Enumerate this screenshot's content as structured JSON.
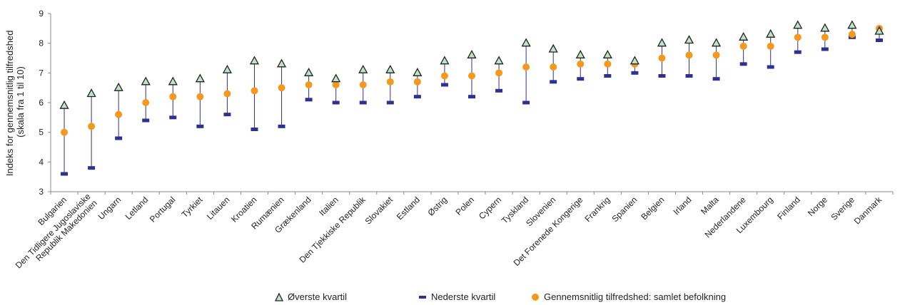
{
  "chart_data": {
    "type": "scatter",
    "ylabel": "Indeks for gennemsnitlig tilfredshed (skala fra 1 til 10)",
    "ylim": [
      3,
      9
    ],
    "yticks": [
      3,
      4,
      5,
      6,
      7,
      8,
      9
    ],
    "grid": false,
    "legend_placement": "bottom",
    "categories": [
      "Bulgarien",
      "Den Tidligere Jugoslaviske Republik Makedonien",
      "Ungarn",
      "Letland",
      "Portugal",
      "Tyrkiet",
      "Litauen",
      "Kroatien",
      "Rumænien",
      "Grækenland",
      "Italien",
      "Den Tjekkiske Republik",
      "Slovakiet",
      "Estland",
      "Østrig",
      "Polen",
      "Cypern",
      "Tyskland",
      "Slovenien",
      "Det Forenede Kongerige",
      "Frankrig",
      "Spanien",
      "Belgien",
      "Irland",
      "Malta",
      "Nederlandene",
      "Luxembourg",
      "Finland",
      "Norge",
      "Sverige",
      "Danmark"
    ],
    "category_labels": [
      [
        "Bulgarien"
      ],
      [
        "Den Tidligere Jugoslaviske",
        "Republik Makedonien"
      ],
      [
        "Ungarn"
      ],
      [
        "Letland"
      ],
      [
        "Portugal"
      ],
      [
        "Tyrkiet"
      ],
      [
        "Litauen"
      ],
      [
        "Kroatien"
      ],
      [
        "Rumænien"
      ],
      [
        "Grækenland"
      ],
      [
        "Italien"
      ],
      [
        "Den Tjekkiske Republik"
      ],
      [
        "Slovakiet"
      ],
      [
        "Estland"
      ],
      [
        "Østrig"
      ],
      [
        "Polen"
      ],
      [
        "Cypern"
      ],
      [
        "Tyskland"
      ],
      [
        "Slovenien"
      ],
      [
        "Det Forenede Kongerige"
      ],
      [
        "Frankrig"
      ],
      [
        "Spanien"
      ],
      [
        "Belgien"
      ],
      [
        "Irland"
      ],
      [
        "Malta"
      ],
      [
        "Nederlandene"
      ],
      [
        "Luxembourg"
      ],
      [
        "Finland"
      ],
      [
        "Norge"
      ],
      [
        "Sverige"
      ],
      [
        "Danmark"
      ]
    ],
    "series": [
      {
        "name": "Øverste kvartil",
        "marker": "triangle",
        "color": "#2e7d5b",
        "values": [
          5.9,
          6.3,
          6.5,
          6.7,
          6.7,
          6.8,
          7.1,
          7.4,
          7.3,
          7.0,
          6.8,
          7.1,
          7.1,
          7.0,
          7.4,
          7.6,
          7.4,
          8.0,
          7.8,
          7.6,
          7.6,
          7.4,
          8.0,
          8.1,
          8.0,
          8.2,
          8.3,
          8.6,
          8.5,
          8.6,
          8.4
        ]
      },
      {
        "name": "Nederste kvartil",
        "marker": "dash",
        "color": "#2e3192",
        "values": [
          3.6,
          3.8,
          4.8,
          5.4,
          5.5,
          5.2,
          5.6,
          5.1,
          5.2,
          6.1,
          6.0,
          6.0,
          6.0,
          6.2,
          6.6,
          6.2,
          6.4,
          6.0,
          6.7,
          6.8,
          6.9,
          7.0,
          6.9,
          6.9,
          6.8,
          7.3,
          7.2,
          7.7,
          7.8,
          8.2,
          8.1
        ]
      },
      {
        "name": "Gennemsnitlig tilfredshed: samlet befolkning",
        "marker": "circle",
        "color": "#f39a1e",
        "values": [
          5.0,
          5.2,
          5.6,
          6.0,
          6.2,
          6.2,
          6.3,
          6.4,
          6.5,
          6.6,
          6.6,
          6.6,
          6.7,
          6.7,
          6.9,
          6.9,
          7.0,
          7.2,
          7.2,
          7.3,
          7.3,
          7.3,
          7.5,
          7.6,
          7.6,
          7.9,
          7.9,
          8.2,
          8.2,
          8.3,
          8.5
        ]
      }
    ],
    "colors": {
      "axis": "#888888",
      "stem": "#2e3192",
      "triangle_fill": "#bfe3c6",
      "triangle_stroke": "#222222"
    }
  }
}
